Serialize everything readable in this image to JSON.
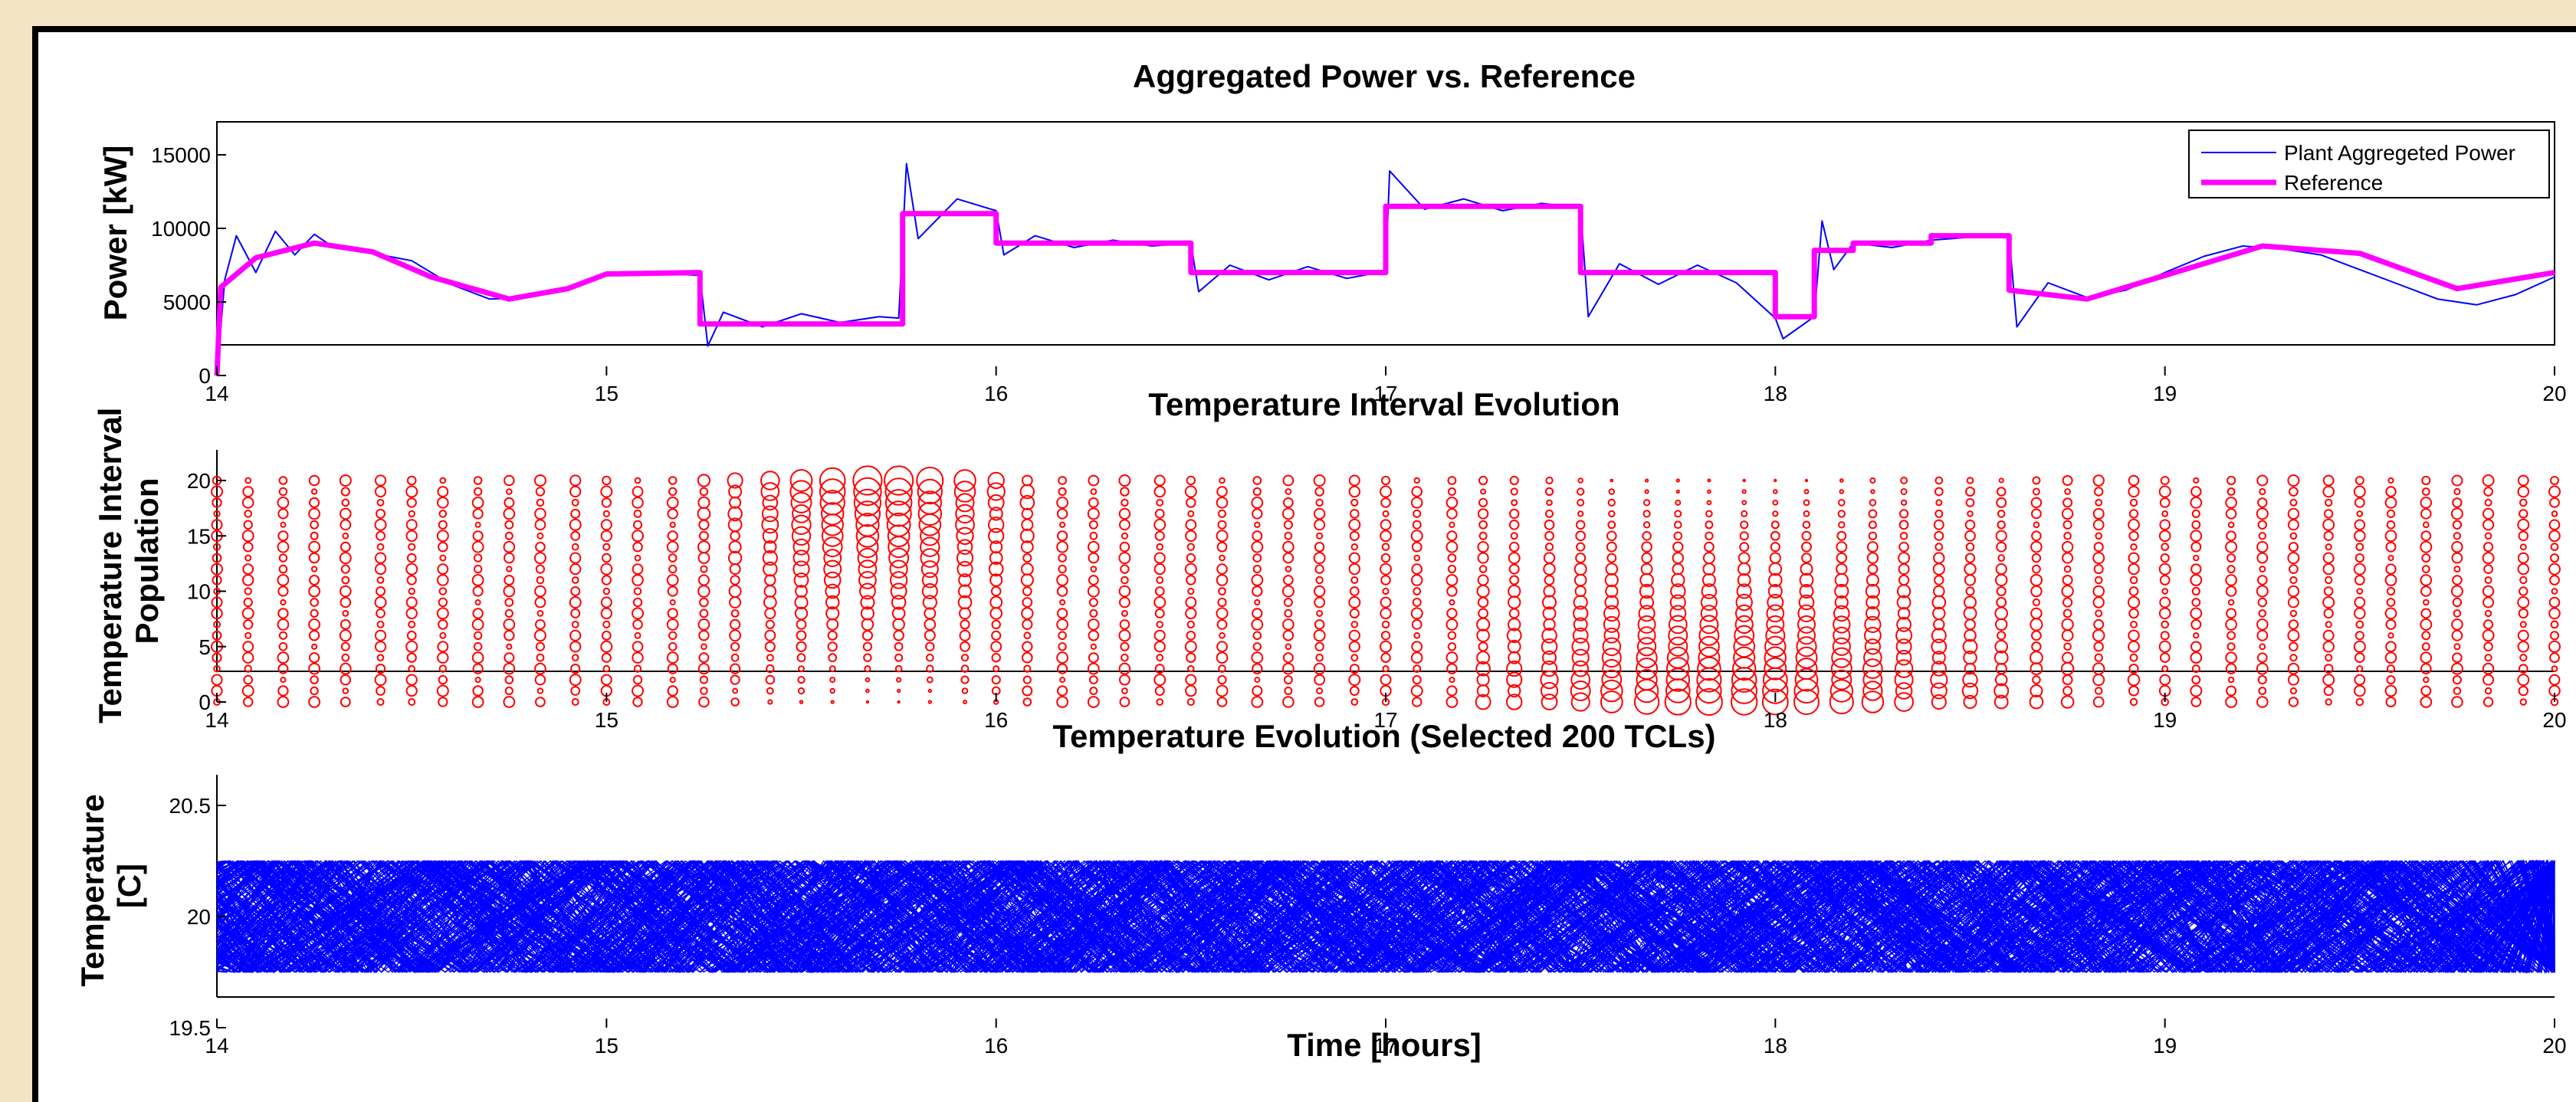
{
  "colors": {
    "page_background": "#f3e4c4",
    "plant_power": "#0000ff",
    "reference": "#ff00ff",
    "bubbles": "#ff0000",
    "temperature_lines": "#0000ff"
  },
  "figure": {
    "xlabel": "Time [hours]"
  },
  "chart_data": [
    {
      "type": "line",
      "title": "Aggregated Power vs. Reference",
      "xlabel": "",
      "ylabel": "Power [kW]",
      "xlim": [
        14,
        20
      ],
      "ylim": [
        0,
        15000
      ],
      "xticks": [
        14,
        15,
        16,
        17,
        18,
        19,
        20
      ],
      "yticks": [
        0,
        5000,
        10000,
        15000
      ],
      "grid": false,
      "legend_position": "top-right",
      "series": [
        {
          "name": "Plant Aggregeted Power",
          "color": "#0000ff",
          "note_values": "oscillating response tracking the reference",
          "x": [
            14.0,
            14.02,
            14.05,
            14.1,
            14.15,
            14.2,
            14.25,
            14.3,
            14.4,
            14.5,
            14.6,
            14.7,
            14.8,
            14.9,
            15.0,
            15.1,
            15.24,
            15.26,
            15.3,
            15.4,
            15.5,
            15.6,
            15.7,
            15.75,
            15.77,
            15.8,
            15.9,
            16.0,
            16.02,
            16.1,
            16.2,
            16.3,
            16.4,
            16.5,
            16.52,
            16.6,
            16.7,
            16.8,
            16.9,
            17.0,
            17.01,
            17.1,
            17.2,
            17.3,
            17.4,
            17.5,
            17.52,
            17.6,
            17.7,
            17.8,
            17.9,
            18.0,
            18.02,
            18.1,
            18.12,
            18.15,
            18.2,
            18.3,
            18.4,
            18.5,
            18.6,
            18.62,
            18.7,
            18.8,
            18.9,
            19.0,
            19.1,
            19.2,
            19.3,
            19.4,
            19.5,
            19.6,
            19.7,
            19.8,
            19.9,
            20.0
          ],
          "y": [
            0,
            6500,
            9500,
            7000,
            9800,
            8200,
            9600,
            8700,
            8300,
            7800,
            6200,
            5200,
            5300,
            6000,
            7000,
            7000,
            6800,
            2000,
            4300,
            3300,
            4200,
            3600,
            4000,
            3900,
            14400,
            9300,
            12000,
            11200,
            8200,
            9500,
            8700,
            9200,
            8800,
            9000,
            5700,
            7500,
            6500,
            7400,
            6600,
            7100,
            13900,
            11300,
            12000,
            11200,
            11700,
            11400,
            4000,
            7600,
            6200,
            7500,
            6300,
            3900,
            2500,
            4000,
            10500,
            7200,
            9000,
            8700,
            9200,
            9400,
            9500,
            3300,
            6300,
            5300,
            5800,
            7000,
            8100,
            8800,
            8600,
            8200,
            7200,
            6200,
            5200,
            4800,
            5500,
            6700
          ]
        },
        {
          "name": "Reference",
          "color": "#ff00ff",
          "x": [
            14.0,
            14.01,
            14.1,
            14.25,
            14.4,
            14.55,
            14.75,
            14.9,
            15.0,
            15.24,
            15.24,
            15.76,
            15.76,
            16.0,
            16.0,
            16.5,
            16.5,
            17.0,
            17.0,
            17.5,
            17.5,
            18.0,
            18.0,
            18.1,
            18.1,
            18.2,
            18.2,
            18.4,
            18.4,
            18.6,
            18.6,
            18.8,
            19.0,
            19.25,
            19.5,
            19.75,
            20.0
          ],
          "y": [
            0,
            6000,
            8000,
            9000,
            8400,
            6700,
            5200,
            5900,
            6900,
            7000,
            3500,
            3500,
            11000,
            11000,
            9000,
            9000,
            7000,
            7000,
            11500,
            11500,
            7000,
            7000,
            4000,
            4000,
            8500,
            8500,
            9000,
            9000,
            9500,
            9500,
            5800,
            5200,
            6800,
            8800,
            8300,
            5900,
            7000
          ]
        }
      ]
    },
    {
      "type": "scatter",
      "title": "Temperature Interval Evolution",
      "xlabel": "",
      "ylabel": "Temperature Interval\nPopulation",
      "xlim": [
        14,
        20
      ],
      "ylim": [
        0,
        20
      ],
      "xticks": [
        14,
        15,
        16,
        17,
        18,
        19,
        20
      ],
      "yticks": [
        0,
        5,
        10,
        15,
        20
      ],
      "marker": "open circle, radius proportional to population",
      "time_step_hours": 0.0833,
      "columns": [
        {
          "x": 14.0,
          "y_range": [
            0,
            20
          ]
        },
        {
          "x": 14.08,
          "y_range": [
            0,
            20
          ]
        },
        {
          "x": 14.17,
          "y_range": [
            0,
            20
          ]
        },
        {
          "x": 14.25,
          "y_range": [
            0,
            20
          ]
        },
        {
          "x": 14.33,
          "y_range": [
            0,
            20
          ]
        },
        {
          "x": 14.42,
          "y_range": [
            0,
            20
          ]
        },
        {
          "x": 14.5,
          "y_range": [
            0,
            20
          ]
        },
        {
          "x": 14.58,
          "y_range": [
            0,
            20
          ]
        },
        {
          "x": 14.67,
          "y_range": [
            0,
            20
          ]
        },
        {
          "x": 14.75,
          "y_range": [
            0,
            20
          ]
        },
        {
          "x": 14.83,
          "y_range": [
            0,
            20
          ]
        },
        {
          "x": 14.92,
          "y_range": [
            0,
            20
          ]
        },
        {
          "x": 15.0,
          "y_range": [
            0,
            20
          ]
        },
        {
          "x": 15.08,
          "y_range": [
            0,
            20
          ]
        },
        {
          "x": 15.17,
          "y_range": [
            0,
            20
          ]
        },
        {
          "x": 15.25,
          "y_range": [
            0,
            20
          ]
        },
        {
          "x": 15.33,
          "y_range": [
            0,
            20
          ]
        },
        {
          "x": 15.42,
          "y_range": [
            0,
            20
          ]
        },
        {
          "x": 15.5,
          "y_range": [
            0,
            20
          ]
        },
        {
          "x": 15.58,
          "y_range": [
            0,
            20
          ]
        },
        {
          "x": 15.67,
          "y_range": [
            0,
            20
          ]
        },
        {
          "x": 15.75,
          "y_range": [
            0,
            20
          ]
        },
        {
          "x": 15.83,
          "y_range": [
            0,
            20
          ]
        },
        {
          "x": 15.92,
          "y_range": [
            0,
            20
          ]
        },
        {
          "x": 16.0,
          "y_range": [
            0,
            20
          ]
        },
        {
          "x": 16.08,
          "y_range": [
            0,
            20
          ]
        },
        {
          "x": 16.17,
          "y_range": [
            0,
            20
          ]
        },
        {
          "x": 16.25,
          "y_range": [
            0,
            20
          ]
        },
        {
          "x": 16.33,
          "y_range": [
            0,
            20
          ]
        },
        {
          "x": 16.42,
          "y_range": [
            0,
            20
          ]
        },
        {
          "x": 16.5,
          "y_range": [
            0,
            20
          ]
        },
        {
          "x": 16.58,
          "y_range": [
            0,
            20
          ]
        },
        {
          "x": 16.67,
          "y_range": [
            0,
            20
          ]
        },
        {
          "x": 16.75,
          "y_range": [
            0,
            20
          ]
        },
        {
          "x": 16.83,
          "y_range": [
            0,
            20
          ]
        },
        {
          "x": 16.92,
          "y_range": [
            0,
            20
          ]
        },
        {
          "x": 17.0,
          "y_range": [
            0,
            20
          ]
        },
        {
          "x": 17.08,
          "y_range": [
            0,
            20
          ]
        },
        {
          "x": 17.17,
          "y_range": [
            0,
            20
          ]
        },
        {
          "x": 17.25,
          "y_range": [
            0,
            20
          ]
        },
        {
          "x": 17.33,
          "y_range": [
            0,
            20
          ]
        },
        {
          "x": 17.42,
          "y_range": [
            0,
            20
          ]
        },
        {
          "x": 17.5,
          "y_range": [
            0,
            20
          ]
        },
        {
          "x": 17.58,
          "y_range": [
            0,
            20
          ]
        },
        {
          "x": 17.67,
          "y_range": [
            0,
            20
          ]
        },
        {
          "x": 17.75,
          "y_range": [
            0,
            20
          ]
        },
        {
          "x": 17.83,
          "y_range": [
            0,
            20
          ]
        },
        {
          "x": 17.92,
          "y_range": [
            0,
            20
          ]
        },
        {
          "x": 18.0,
          "y_range": [
            0,
            20
          ]
        },
        {
          "x": 18.08,
          "y_range": [
            0,
            20
          ]
        },
        {
          "x": 18.17,
          "y_range": [
            0,
            20
          ]
        },
        {
          "x": 18.25,
          "y_range": [
            0,
            20
          ]
        },
        {
          "x": 18.33,
          "y_range": [
            0,
            20
          ]
        },
        {
          "x": 18.42,
          "y_range": [
            0,
            20
          ]
        },
        {
          "x": 18.5,
          "y_range": [
            0,
            20
          ]
        },
        {
          "x": 18.58,
          "y_range": [
            0,
            20
          ]
        },
        {
          "x": 18.67,
          "y_range": [
            0,
            20
          ]
        },
        {
          "x": 18.75,
          "y_range": [
            0,
            20
          ]
        },
        {
          "x": 18.83,
          "y_range": [
            0,
            20
          ]
        },
        {
          "x": 18.92,
          "y_range": [
            0,
            20
          ]
        },
        {
          "x": 19.0,
          "y_range": [
            0,
            20
          ]
        },
        {
          "x": 19.08,
          "y_range": [
            0,
            20
          ]
        },
        {
          "x": 19.17,
          "y_range": [
            0,
            20
          ]
        },
        {
          "x": 19.25,
          "y_range": [
            0,
            20
          ]
        },
        {
          "x": 19.33,
          "y_range": [
            0,
            20
          ]
        },
        {
          "x": 19.42,
          "y_range": [
            0,
            20
          ]
        },
        {
          "x": 19.5,
          "y_range": [
            0,
            20
          ]
        },
        {
          "x": 19.58,
          "y_range": [
            0,
            20
          ]
        },
        {
          "x": 19.67,
          "y_range": [
            0,
            20
          ]
        },
        {
          "x": 19.75,
          "y_range": [
            0,
            20
          ]
        },
        {
          "x": 19.83,
          "y_range": [
            0,
            20
          ]
        },
        {
          "x": 19.92,
          "y_range": [
            0,
            20
          ]
        },
        {
          "x": 20.0,
          "y_range": [
            0,
            20
          ]
        }
      ],
      "note": "population concentrates at high intervals (~15-20) near 15.4-15.8 h and at low intervals (~0-3) around 17.4-18.8 h"
    },
    {
      "type": "line",
      "title": "Temperature Evolution (Selected 200 TCLs)",
      "xlabel": "Time [hours]",
      "ylabel": "Temperature\n[C]",
      "xlim": [
        14,
        20
      ],
      "ylim": [
        19.5,
        20.5
      ],
      "xticks": [
        14,
        15,
        16,
        17,
        18,
        19,
        20
      ],
      "yticks": [
        19.5,
        20,
        20.5
      ],
      "series_count": 200,
      "series_color": "#0000ff",
      "band": [
        19.75,
        20.25
      ],
      "note": "each TCL oscillates in a sawtooth between 19.75 and 20.25 C"
    }
  ]
}
